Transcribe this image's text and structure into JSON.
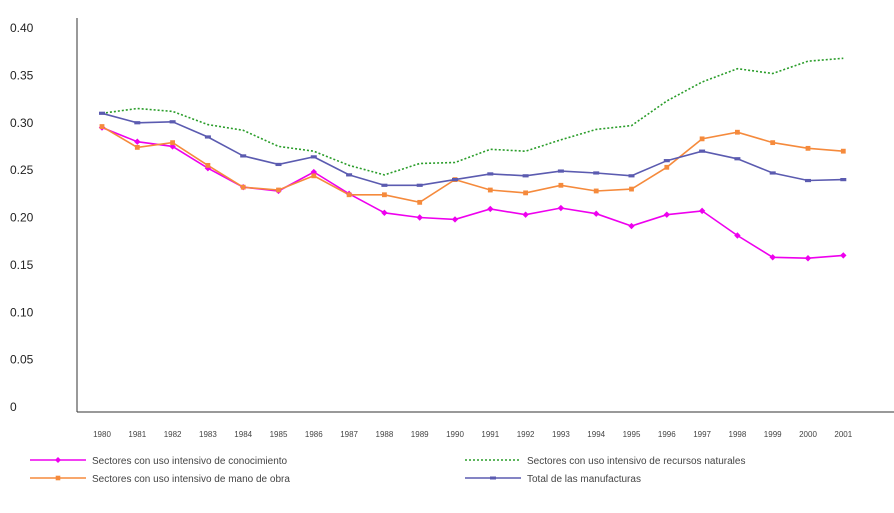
{
  "chart_data": {
    "type": "line",
    "title": "",
    "xlabel": "",
    "ylabel": "",
    "categories": [
      "1980",
      "1981",
      "1982",
      "1983",
      "1984",
      "1985",
      "1986",
      "1987",
      "1988",
      "1989",
      "1990",
      "1991",
      "1992",
      "1993",
      "1994",
      "1995",
      "1996",
      "1997",
      "1998",
      "1999",
      "2000",
      "2001"
    ],
    "y_tick_labels": [
      "0",
      "0.05",
      "0.10",
      "0.15",
      "0.20",
      "0.25",
      "0.30",
      "0.35",
      "0.40"
    ],
    "ylim": [
      0,
      0.4
    ],
    "grid": false,
    "legend_position": "bottom",
    "series": [
      {
        "name": "Sectores con uso intensivo de conocimiento",
        "color": "#ee00ee",
        "dash": "solid",
        "marker": "diamond",
        "values": [
          0.295,
          0.28,
          0.275,
          0.252,
          0.232,
          0.228,
          0.248,
          0.225,
          0.205,
          0.2,
          0.198,
          0.209,
          0.203,
          0.21,
          0.204,
          0.191,
          0.203,
          0.207,
          0.181,
          0.158,
          0.157,
          0.16
        ]
      },
      {
        "name": "Sectores con uso intensivo de recursos naturales",
        "color": "#2a9d2a",
        "dash": "dotted",
        "marker": "none",
        "values": [
          0.31,
          0.315,
          0.312,
          0.298,
          0.292,
          0.275,
          0.27,
          0.255,
          0.245,
          0.257,
          0.258,
          0.272,
          0.27,
          0.282,
          0.293,
          0.297,
          0.323,
          0.343,
          0.357,
          0.352,
          0.365,
          0.368
        ]
      },
      {
        "name": "Sectores con uso intensivo de mano de obra",
        "color": "#f58a3c",
        "dash": "solid",
        "marker": "square",
        "values": [
          0.296,
          0.274,
          0.279,
          0.255,
          0.232,
          0.229,
          0.244,
          0.224,
          0.224,
          0.216,
          0.24,
          0.229,
          0.226,
          0.234,
          0.228,
          0.23,
          0.253,
          0.283,
          0.29,
          0.279,
          0.273,
          0.27
        ]
      },
      {
        "name": "Total de las manufacturas",
        "color": "#5b5bb0",
        "dash": "solid",
        "marker": "dash",
        "values": [
          0.31,
          0.3,
          0.301,
          0.285,
          0.265,
          0.256,
          0.264,
          0.245,
          0.234,
          0.234,
          0.24,
          0.246,
          0.244,
          0.249,
          0.247,
          0.244,
          0.26,
          0.27,
          0.262,
          0.247,
          0.239,
          0.24
        ]
      }
    ]
  }
}
